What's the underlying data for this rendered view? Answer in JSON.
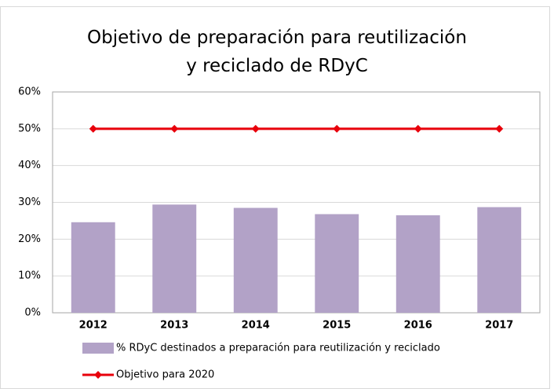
{
  "chart_data": {
    "type": "bar",
    "title": "Objetivo de preparación para reutilización y reciclado de RDyC",
    "categories": [
      "2012",
      "2013",
      "2014",
      "2015",
      "2016",
      "2017"
    ],
    "series": [
      {
        "name": "% RDyC destinados a preparación para reutilización y reciclado",
        "type": "bar",
        "color": "#b2a2c7",
        "values": [
          24.6,
          29.4,
          28.5,
          26.8,
          26.5,
          28.7
        ]
      },
      {
        "name": "Objetivo para 2020",
        "type": "line",
        "color": "#e8000b",
        "values": [
          50,
          50,
          50,
          50,
          50,
          50
        ]
      }
    ],
    "ylim": [
      0,
      60
    ],
    "yticks": [
      {
        "value": 0,
        "label": "0%"
      },
      {
        "value": 10,
        "label": "10%"
      },
      {
        "value": 20,
        "label": "20%"
      },
      {
        "value": 30,
        "label": "30%"
      },
      {
        "value": 40,
        "label": "40%"
      },
      {
        "value": 50,
        "label": "50%"
      },
      {
        "value": 60,
        "label": "60%"
      }
    ],
    "grid": true,
    "legend": "bottom"
  }
}
